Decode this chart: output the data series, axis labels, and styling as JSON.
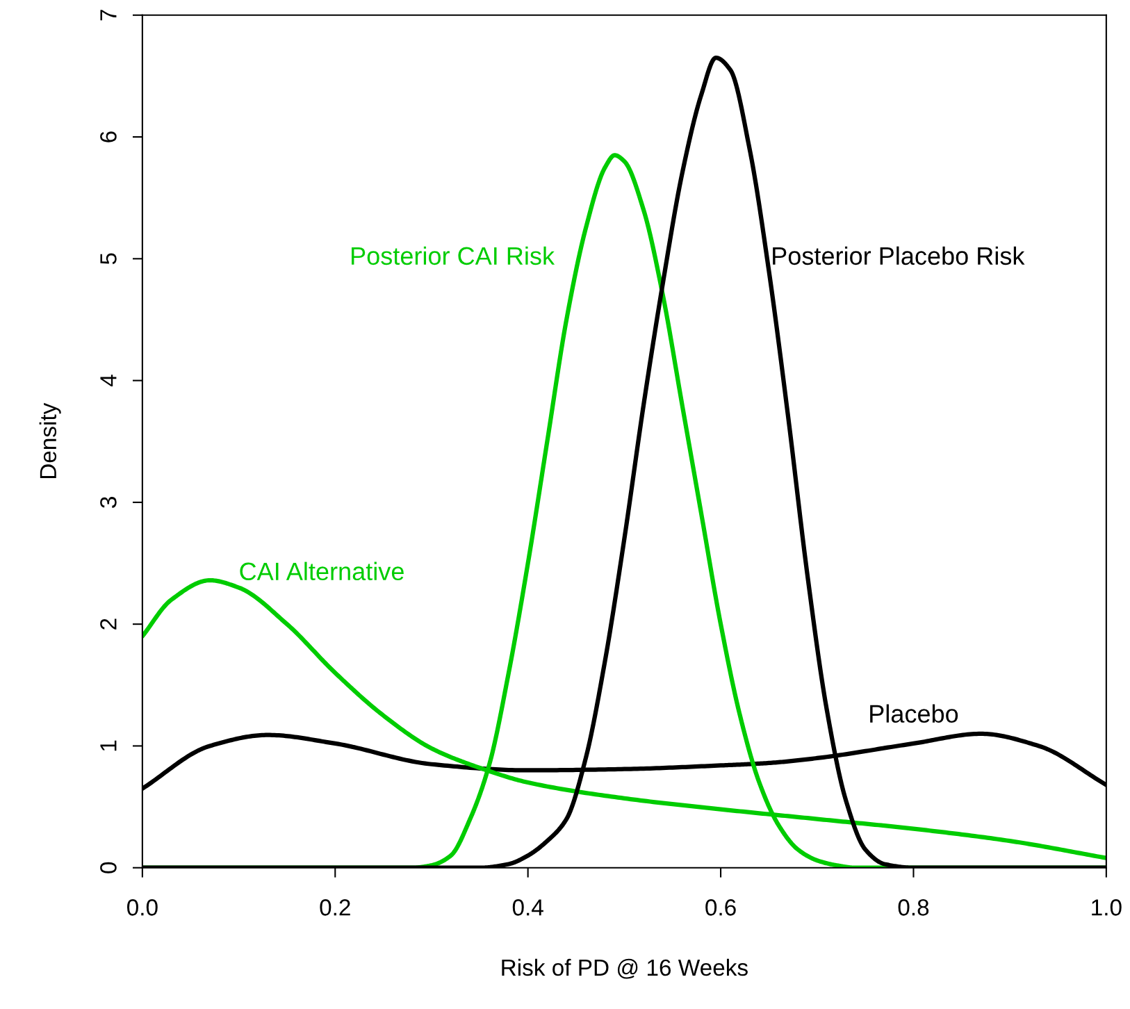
{
  "chart_data": {
    "type": "line",
    "xlabel": "Risk of PD @ 16 Weeks",
    "ylabel": "Density",
    "xlim": [
      0,
      1
    ],
    "ylim": [
      0,
      7
    ],
    "xticks": [
      {
        "value": 0,
        "label": "0.0"
      },
      {
        "value": 0.2,
        "label": "0.2"
      },
      {
        "value": 0.4,
        "label": "0.4"
      },
      {
        "value": 0.6,
        "label": "0.6"
      },
      {
        "value": 0.8,
        "label": "0.8"
      },
      {
        "value": 1,
        "label": "1.0"
      }
    ],
    "yticks": [
      0,
      1,
      2,
      3,
      4,
      5,
      6,
      7
    ],
    "grid": false,
    "legend": false,
    "marker": "none",
    "line_style": "solid",
    "series": [
      {
        "name": "Placebo",
        "color": "#000000",
        "x": [
          0,
          0.07,
          0.13,
          0.2,
          0.3,
          0.4,
          0.5,
          0.6,
          0.65,
          0.7,
          0.8,
          0.87,
          0.93,
          1.0
        ],
        "values": [
          0.65,
          1.0,
          1.09,
          1.02,
          0.85,
          0.8,
          0.81,
          0.84,
          0.86,
          0.9,
          1.02,
          1.1,
          1.0,
          0.68
        ]
      },
      {
        "name": "CAI Alternative",
        "color": "#00cc00",
        "x": [
          0,
          0.03,
          0.07,
          0.1,
          0.15,
          0.2,
          0.25,
          0.3,
          0.35,
          0.4,
          0.5,
          0.6,
          0.7,
          0.8,
          0.9,
          1.0
        ],
        "values": [
          1.9,
          2.2,
          2.36,
          2.3,
          2.0,
          1.6,
          1.25,
          0.98,
          0.82,
          0.7,
          0.57,
          0.48,
          0.4,
          0.32,
          0.22,
          0.08
        ]
      },
      {
        "name": "Posterior CAI Risk",
        "color": "#00cc00",
        "x": [
          0,
          0.28,
          0.3,
          0.32,
          0.34,
          0.36,
          0.38,
          0.4,
          0.42,
          0.44,
          0.46,
          0.48,
          0.49,
          0.5,
          0.52,
          0.54,
          0.56,
          0.58,
          0.6,
          0.62,
          0.64,
          0.66,
          0.68,
          0.7,
          0.72,
          0.74,
          1.0
        ],
        "values": [
          0,
          0,
          0.02,
          0.1,
          0.4,
          0.85,
          1.6,
          2.5,
          3.5,
          4.5,
          5.25,
          5.75,
          5.85,
          5.8,
          5.4,
          4.7,
          3.8,
          2.9,
          2.0,
          1.25,
          0.7,
          0.35,
          0.15,
          0.06,
          0.02,
          0,
          0
        ]
      },
      {
        "name": "Posterior Placebo Risk",
        "color": "#000000",
        "x": [
          0,
          0.35,
          0.38,
          0.4,
          0.42,
          0.44,
          0.46,
          0.48,
          0.5,
          0.52,
          0.54,
          0.56,
          0.58,
          0.595,
          0.61,
          0.63,
          0.65,
          0.67,
          0.69,
          0.71,
          0.73,
          0.75,
          0.77,
          0.8,
          1.0
        ],
        "values": [
          0,
          0,
          0.03,
          0.1,
          0.22,
          0.4,
          0.9,
          1.7,
          2.7,
          3.8,
          4.8,
          5.7,
          6.35,
          6.65,
          6.55,
          5.9,
          4.9,
          3.7,
          2.4,
          1.3,
          0.55,
          0.15,
          0.03,
          0,
          0
        ]
      }
    ]
  }
}
